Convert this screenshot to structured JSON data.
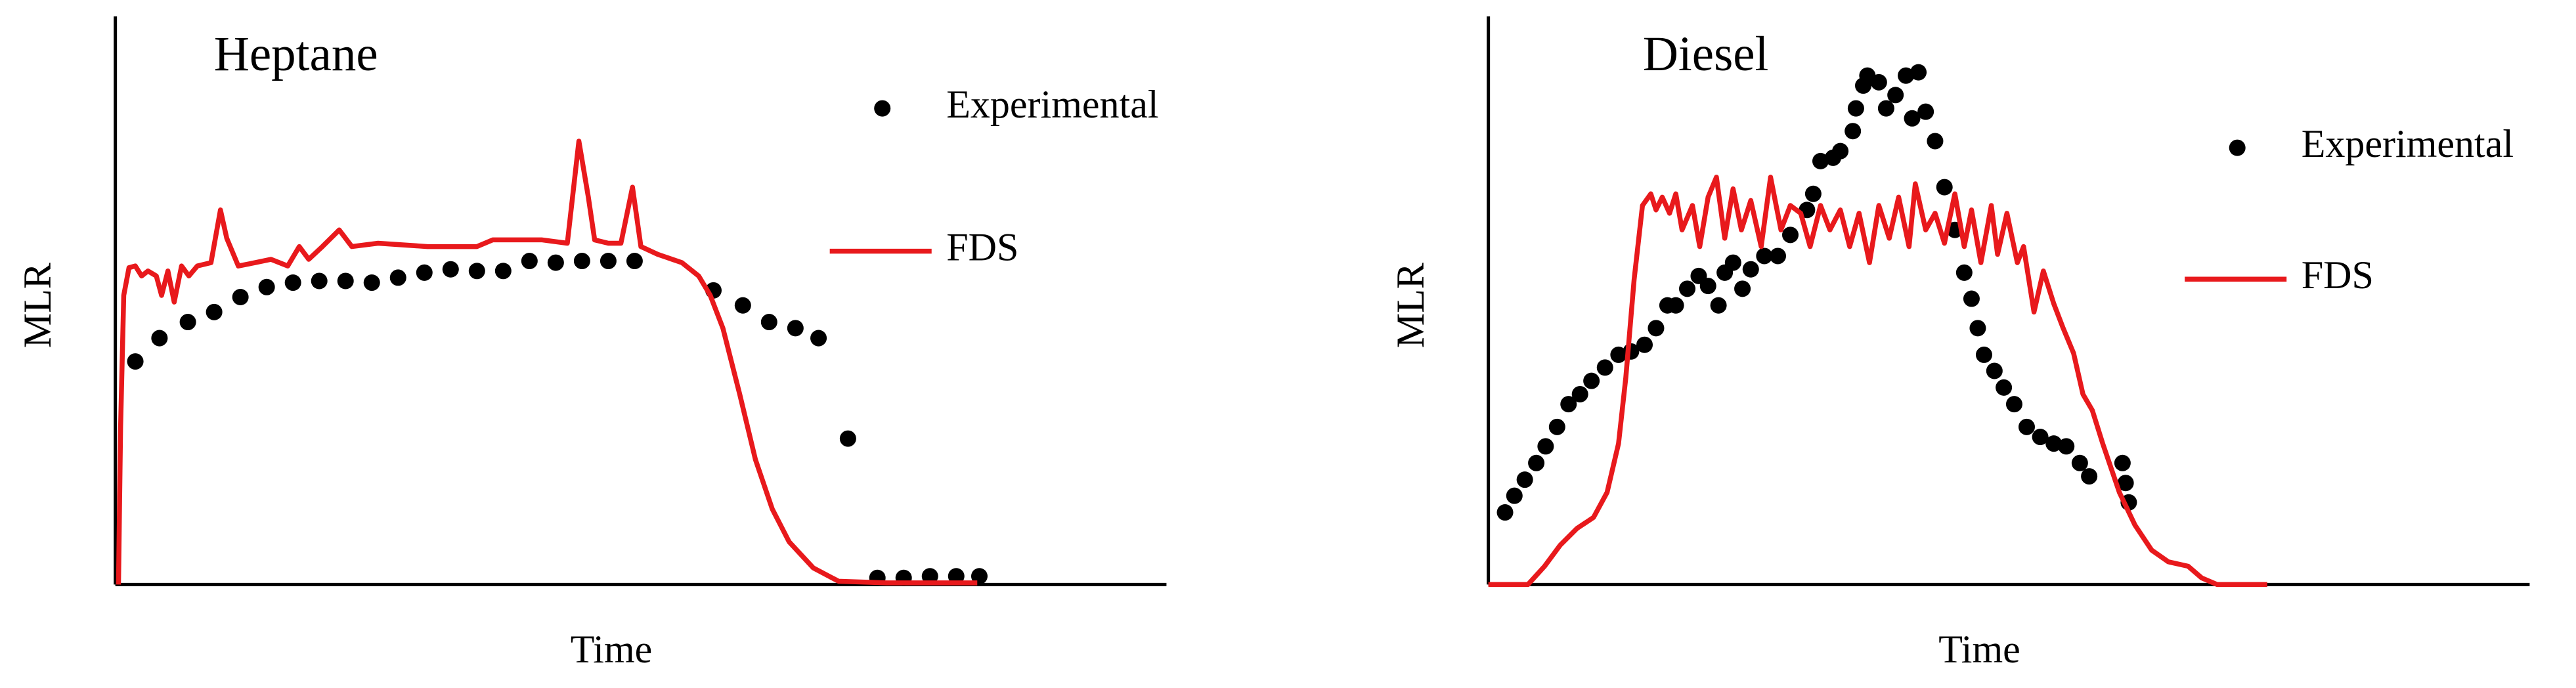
{
  "chart_data": [
    {
      "type": "line",
      "title": "Heptane",
      "title_color": "#4472c4",
      "xlabel": "Time",
      "ylabel": "MLR",
      "xlim": [
        0,
        100
      ],
      "ylim": [
        0,
        100
      ],
      "legend": "upper right",
      "series": [
        {
          "name": "Experimental",
          "color": "#000000",
          "style": "markers",
          "x": [
            1.9,
            4.2,
            6.9,
            9.4,
            11.9,
            14.4,
            16.9,
            19.4,
            21.9,
            24.4,
            26.9,
            29.4,
            31.9,
            34.4,
            36.9,
            39.4,
            41.9,
            44.4,
            46.9,
            49.4,
            56.9,
            59.7,
            62.2,
            64.7,
            66.9,
            69.7,
            72.5,
            75.0,
            77.5,
            80.0,
            82.2
          ],
          "values": [
            40.2,
            44.4,
            47.3,
            49.1,
            51.8,
            53.6,
            54.4,
            54.7,
            54.7,
            54.4,
            55.3,
            56.2,
            56.8,
            56.5,
            56.5,
            58.3,
            58.0,
            58.3,
            58.3,
            58.3,
            53.0,
            50.3,
            47.3,
            46.2,
            44.4,
            26.3,
            1.2,
            1.2,
            1.5,
            1.5,
            1.5
          ]
        },
        {
          "name": "FDS",
          "color": "#e8191c",
          "style": "line",
          "x": [
            0.3,
            0.5,
            0.8,
            1.3,
            1.9,
            2.5,
            3.1,
            3.9,
            4.4,
            5.0,
            5.6,
            6.3,
            7.0,
            7.8,
            9.1,
            10.0,
            10.6,
            11.7,
            13.3,
            14.8,
            16.4,
            17.5,
            18.4,
            19.7,
            21.3,
            22.5,
            25.0,
            29.7,
            34.4,
            35.9,
            40.6,
            43.0,
            44.1,
            45.0,
            45.6,
            46.9,
            48.1,
            49.2,
            50.0,
            51.6,
            53.9,
            55.5,
            56.6,
            57.8,
            59.4,
            60.9,
            62.5,
            64.1,
            66.4,
            68.8,
            73.4,
            78.1,
            82.0
          ],
          "values": [
            0,
            28.4,
            52.1,
            57.1,
            57.4,
            55.6,
            56.5,
            55.6,
            52.1,
            56.5,
            50.9,
            57.4,
            55.6,
            57.4,
            58.0,
            67.5,
            62.4,
            57.4,
            58.0,
            58.6,
            57.4,
            60.9,
            58.6,
            60.9,
            63.9,
            60.9,
            61.5,
            60.9,
            60.9,
            62.1,
            62.1,
            61.5,
            79.9,
            69.8,
            62.1,
            61.5,
            61.5,
            71.6,
            60.9,
            59.5,
            58.0,
            55.6,
            52.1,
            46.2,
            34.3,
            22.5,
            13.6,
            7.7,
            3.0,
            0.6,
            0.3,
            0.3,
            0.3
          ]
        }
      ]
    },
    {
      "type": "line",
      "title": "Diesel",
      "title_color": "#4472c4",
      "xlabel": "Time",
      "ylabel": "MLR",
      "xlim": [
        0,
        100
      ],
      "ylim": [
        0,
        100
      ],
      "legend": "upper right",
      "series": [
        {
          "name": "Experimental",
          "color": "#000000",
          "style": "markers",
          "x": [
            1.6,
            2.5,
            3.5,
            4.6,
            5.5,
            6.6,
            7.7,
            8.8,
            9.9,
            11.2,
            12.5,
            13.7,
            15.0,
            16.1,
            17.2,
            18.0,
            19.1,
            20.2,
            21.1,
            22.1,
            22.7,
            23.5,
            24.4,
            25.2,
            26.5,
            27.8,
            29.0,
            30.6,
            31.2,
            31.9,
            33.1,
            33.8,
            35.0,
            35.3,
            36.0,
            36.4,
            37.5,
            38.2,
            39.1,
            40.1,
            40.7,
            41.3,
            42.0,
            42.9,
            43.8,
            44.8,
            45.7,
            46.4,
            47.0,
            47.6,
            48.6,
            49.5,
            50.5,
            51.7,
            53.0,
            54.3,
            55.5,
            56.8,
            57.7,
            60.9,
            61.2,
            61.5
          ],
          "values": [
            13.0,
            16.0,
            18.9,
            21.9,
            24.9,
            28.4,
            32.5,
            34.3,
            36.7,
            39.1,
            41.4,
            42.0,
            43.2,
            46.2,
            50.3,
            50.3,
            53.3,
            55.6,
            53.8,
            50.3,
            56.2,
            58.0,
            53.3,
            56.8,
            59.2,
            59.2,
            63.0,
            67.5,
            70.4,
            76.3,
            76.9,
            78.1,
            81.7,
            85.8,
            89.9,
            91.7,
            90.5,
            85.8,
            88.2,
            91.7,
            84.0,
            92.3,
            85.2,
            79.9,
            71.6,
            63.9,
            56.2,
            51.5,
            46.2,
            41.4,
            38.5,
            35.5,
            32.5,
            28.4,
            26.6,
            25.4,
            24.9,
            21.9,
            19.5,
            21.9,
            18.3,
            14.8
          ]
        },
        {
          "name": "FDS",
          "color": "#e8191c",
          "style": "line",
          "x": [
            0,
            3.8,
            5.4,
            6.9,
            8.5,
            10.1,
            11.4,
            12.5,
            13.2,
            14.0,
            14.8,
            15.6,
            16.1,
            16.7,
            17.4,
            18.0,
            18.6,
            19.6,
            20.3,
            21.1,
            21.9,
            22.7,
            23.5,
            24.3,
            25.2,
            26.2,
            27.1,
            28.1,
            29.0,
            30.0,
            30.9,
            31.9,
            32.8,
            33.8,
            34.7,
            35.6,
            36.6,
            37.5,
            38.5,
            39.4,
            40.4,
            41.0,
            42.0,
            42.9,
            43.8,
            44.8,
            45.7,
            46.4,
            47.3,
            48.3,
            48.9,
            49.8,
            50.8,
            51.4,
            52.4,
            53.3,
            54.3,
            55.2,
            56.2,
            57.1,
            58.0,
            59.0,
            60.6,
            62.1,
            63.7,
            65.3,
            67.2,
            68.5,
            70.0,
            74.8
          ],
          "values": [
            0,
            0,
            3.3,
            7.1,
            10.1,
            12.1,
            16.6,
            25.4,
            37.3,
            55.0,
            68.3,
            70.4,
            67.5,
            69.8,
            66.9,
            70.4,
            63.9,
            68.3,
            60.9,
            69.8,
            73.4,
            62.4,
            71.3,
            63.9,
            69.2,
            60.9,
            73.4,
            63.9,
            68.3,
            66.9,
            60.9,
            68.3,
            63.9,
            67.5,
            60.9,
            66.9,
            58.0,
            68.3,
            62.4,
            69.8,
            60.9,
            72.2,
            63.9,
            66.9,
            61.5,
            70.4,
            60.9,
            67.5,
            58.0,
            68.3,
            59.5,
            66.9,
            58.0,
            60.9,
            49.1,
            56.5,
            50.6,
            46.2,
            41.7,
            34.3,
            31.4,
            25.4,
            16.6,
            10.7,
            6.2,
            4.1,
            3.3,
            1.2,
            0,
            0
          ]
        }
      ]
    }
  ]
}
